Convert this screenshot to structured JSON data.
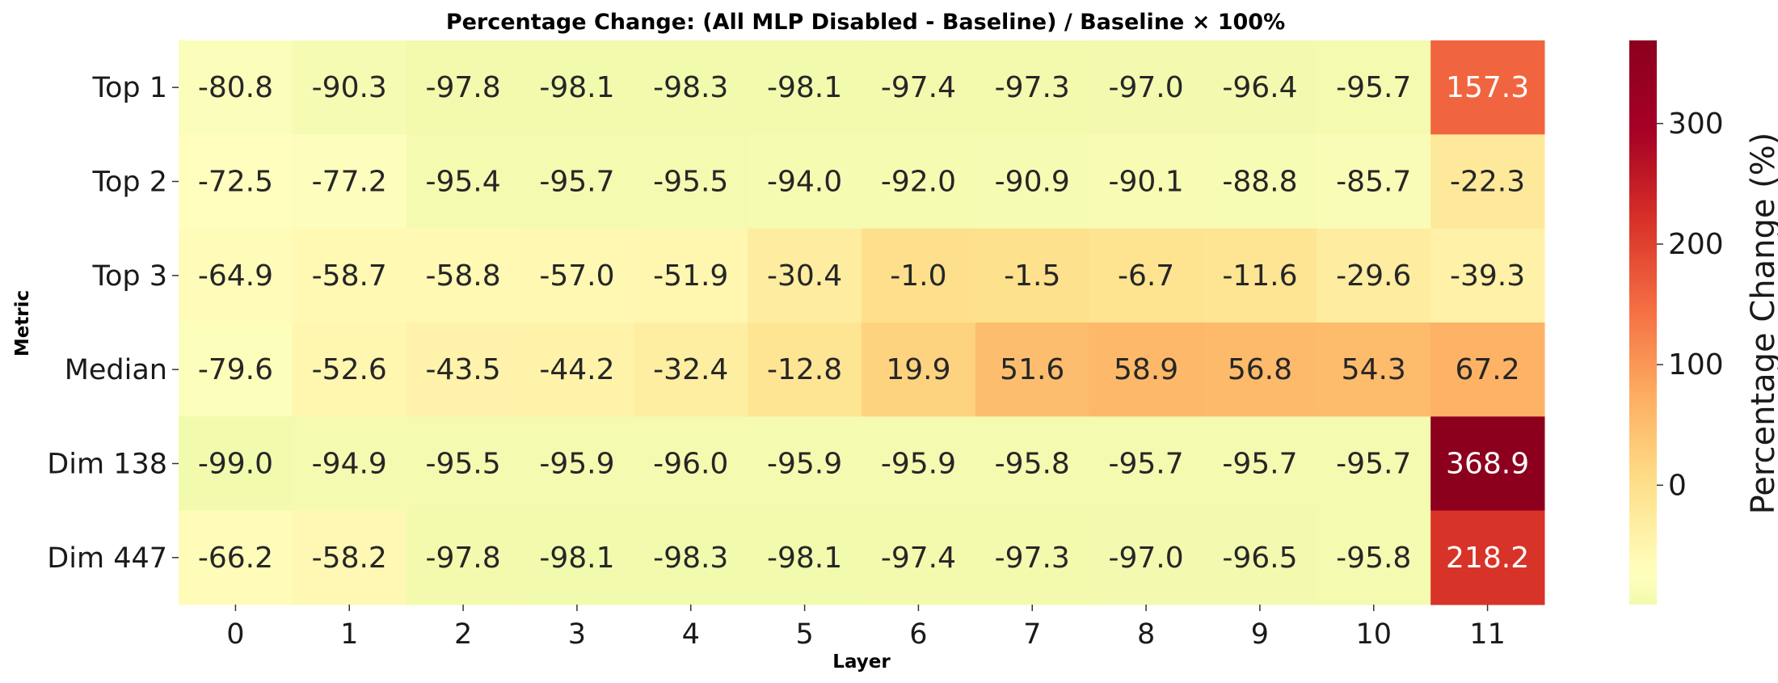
{
  "chart_data": {
    "type": "heatmap",
    "title": "Percentage Change: (All MLP Disabled - Baseline) / Baseline × 100%",
    "xlabel": "Layer",
    "ylabel": "Metric",
    "x_categories": [
      "0",
      "1",
      "2",
      "3",
      "4",
      "5",
      "6",
      "7",
      "8",
      "9",
      "10",
      "11"
    ],
    "y_categories": [
      "Top 1",
      "Top 2",
      "Top 3",
      "Median",
      "Dim 138",
      "Dim 447"
    ],
    "values": [
      [
        -80.8,
        -90.3,
        -97.8,
        -98.1,
        -98.3,
        -98.1,
        -97.4,
        -97.3,
        -97.0,
        -96.4,
        -95.7,
        157.3
      ],
      [
        -72.5,
        -77.2,
        -95.4,
        -95.7,
        -95.5,
        -94.0,
        -92.0,
        -90.9,
        -90.1,
        -88.8,
        -85.7,
        -22.3
      ],
      [
        -64.9,
        -58.7,
        -58.8,
        -57.0,
        -51.9,
        -30.4,
        -1.0,
        -1.5,
        -6.7,
        -11.6,
        -29.6,
        -39.3
      ],
      [
        -79.6,
        -52.6,
        -43.5,
        -44.2,
        -32.4,
        -12.8,
        19.9,
        51.6,
        58.9,
        56.8,
        54.3,
        67.2
      ],
      [
        -99.0,
        -94.9,
        -95.5,
        -95.9,
        -96.0,
        -95.9,
        -95.9,
        -95.8,
        -95.7,
        -95.7,
        -95.7,
        368.9
      ],
      [
        -66.2,
        -58.2,
        -97.8,
        -98.1,
        -98.3,
        -98.1,
        -97.4,
        -97.3,
        -97.0,
        -96.5,
        -95.8,
        218.2
      ]
    ],
    "colorbar": {
      "label": "Percentage Change (%)",
      "ticks": [
        "0",
        "100",
        "200",
        "300"
      ],
      "range": [
        -99.0,
        368.9
      ],
      "colormap": "RdYlGn_r",
      "center": 0
    }
  }
}
